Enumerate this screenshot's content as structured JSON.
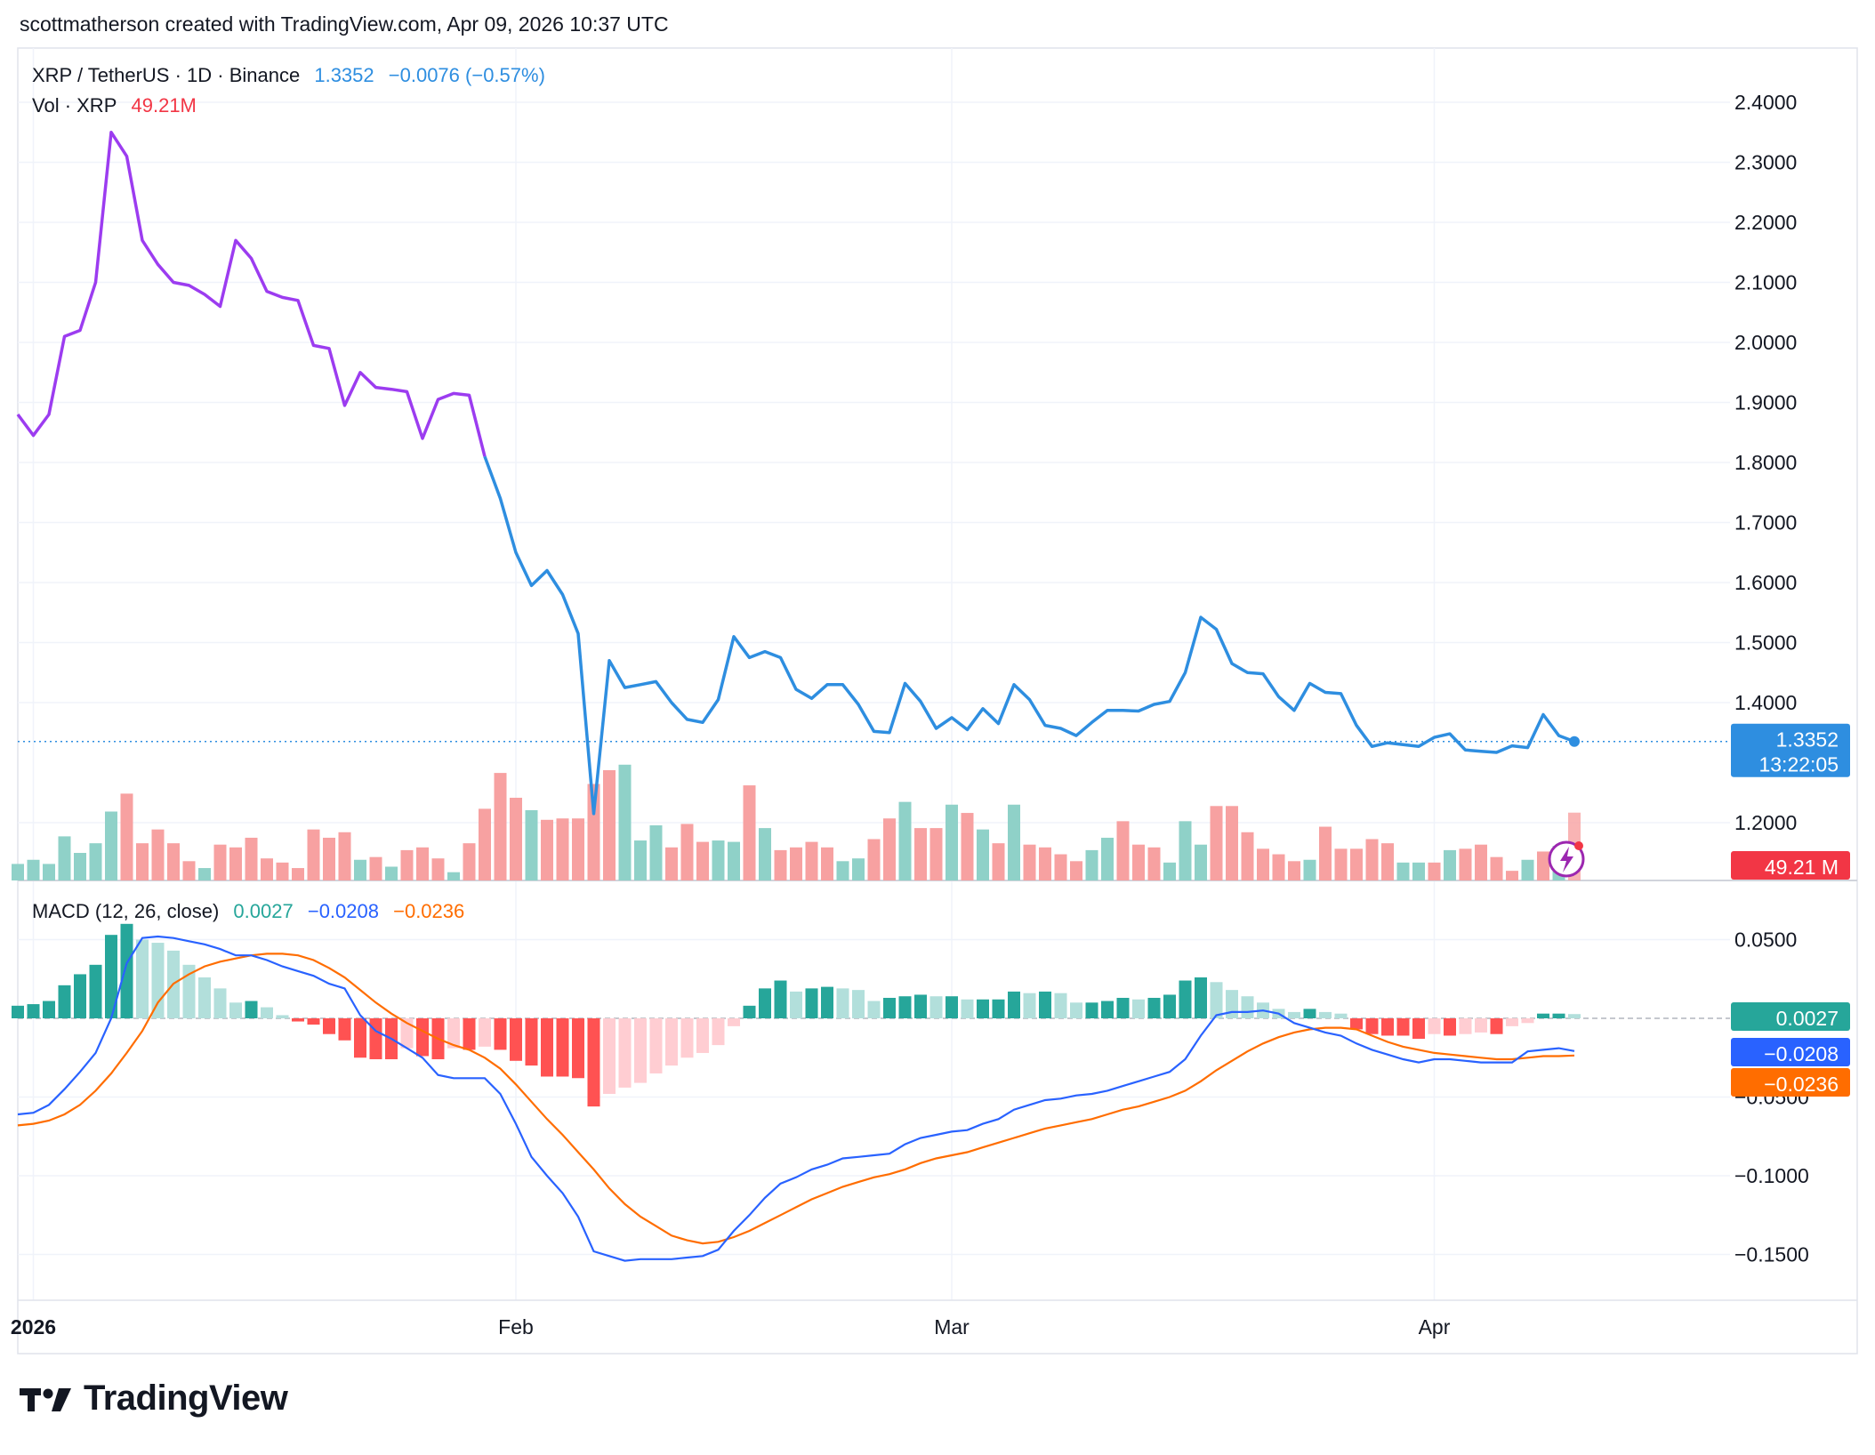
{
  "header": {
    "credit": "scottmatherson created with TradingView.com, Apr 09, 2026 10:37 UTC"
  },
  "legend": {
    "symbol": "XRP / TetherUS · 1D · Binance",
    "price": "1.3352",
    "change": "−0.0076 (−0.57%)",
    "volume_label": "Vol · XRP",
    "volume_value": "49.21M",
    "macd_label": "MACD (12, 26, close)",
    "macd_hist": "0.0027",
    "macd_line": "−0.0208",
    "macd_signal": "−0.0236"
  },
  "badges": {
    "price": "1.3352",
    "countdown": "13:22:05",
    "volume": "49.21 M",
    "macd_hist": "0.0027",
    "macd_line": "−0.0208",
    "macd_signal": "−0.0236"
  },
  "brand": {
    "name": "TradingView"
  },
  "colors": {
    "price_line_early": "#9c3cf0",
    "price_line": "#2e8ee0",
    "vol_up": "#8fd1c8",
    "vol_down": "#f7a1a1",
    "hist_up_strong": "#26a69a",
    "hist_up_weak": "#b2dfdb",
    "hist_down_strong": "#ff5252",
    "hist_down_weak": "#ffcdd2",
    "macd_line": "#2962ff",
    "signal_line": "#ff6d00",
    "volume_badge": "#f23645"
  },
  "chart_data": [
    {
      "type": "line",
      "title": "XRP / TetherUS · 1D · Binance",
      "x_ticks": [
        "2026",
        "Feb",
        "Mar",
        "Apr"
      ],
      "y_ticks": [
        "2.4000",
        "2.3000",
        "2.2000",
        "2.1000",
        "2.0000",
        "1.9000",
        "1.8000",
        "1.7000",
        "1.6000",
        "1.5000",
        "1.4000",
        "1.2000"
      ],
      "ylim": [
        1.1,
        2.45
      ],
      "series": [
        {
          "name": "XRP / TetherUS",
          "values": [
            1.88,
            1.845,
            1.88,
            2.01,
            2.02,
            2.1,
            2.35,
            2.31,
            2.17,
            2.13,
            2.1,
            2.095,
            2.08,
            2.06,
            2.17,
            2.14,
            2.085,
            2.075,
            2.07,
            1.995,
            1.99,
            1.895,
            1.95,
            1.925,
            1.922,
            1.918,
            1.84,
            1.905,
            1.915,
            1.912,
            1.81,
            1.74,
            1.65,
            1.595,
            1.62,
            1.58,
            1.515,
            1.215,
            1.47,
            1.425,
            1.43,
            1.435,
            1.4,
            1.372,
            1.367,
            1.405,
            1.51,
            1.475,
            1.485,
            1.475,
            1.422,
            1.407,
            1.43,
            1.43,
            1.397,
            1.352,
            1.35,
            1.432,
            1.402,
            1.357,
            1.375,
            1.355,
            1.39,
            1.365,
            1.43,
            1.405,
            1.362,
            1.357,
            1.345,
            1.367,
            1.387,
            1.387,
            1.386,
            1.397,
            1.402,
            1.45,
            1.542,
            1.522,
            1.465,
            1.45,
            1.448,
            1.41,
            1.387,
            1.432,
            1.417,
            1.415,
            1.362,
            1.327,
            1.333,
            1.33,
            1.327,
            1.342,
            1.348,
            1.321,
            1.319,
            1.317,
            1.328,
            1.325,
            1.38,
            1.345,
            1.3352
          ]
        }
      ],
      "last_price": 1.3352
    },
    {
      "type": "bar",
      "title": "Vol · XRP",
      "values": [
        12,
        15,
        12,
        32,
        20,
        27,
        50,
        63,
        27,
        37,
        27,
        14,
        9,
        26,
        24,
        31,
        16,
        13,
        9,
        37,
        31,
        35,
        15,
        17,
        10,
        22,
        24,
        16,
        6,
        27,
        52,
        78,
        60,
        51,
        44,
        45,
        45,
        70,
        80,
        84,
        29,
        40,
        24,
        41,
        28,
        29,
        28,
        69,
        38,
        22,
        24,
        28,
        24,
        14,
        16,
        30,
        45,
        57,
        38,
        38,
        55,
        49,
        37,
        27,
        55,
        26,
        24,
        19,
        14,
        22,
        31,
        43,
        26,
        24,
        13,
        43,
        26,
        54,
        54,
        35,
        23,
        19,
        14,
        15,
        39,
        23,
        23,
        30,
        27,
        13,
        13,
        13,
        22,
        23,
        26,
        17,
        7,
        15,
        21,
        25,
        49.21
      ],
      "up": [
        true,
        true,
        true,
        true,
        true,
        true,
        true,
        false,
        false,
        false,
        false,
        false,
        true,
        false,
        false,
        false,
        false,
        false,
        false,
        false,
        false,
        false,
        true,
        false,
        true,
        false,
        false,
        false,
        true,
        false,
        false,
        false,
        false,
        true,
        false,
        false,
        false,
        false,
        false,
        true,
        true,
        true,
        false,
        false,
        false,
        true,
        true,
        false,
        true,
        false,
        false,
        false,
        false,
        true,
        true,
        false,
        false,
        true,
        false,
        false,
        true,
        false,
        true,
        false,
        true,
        false,
        false,
        false,
        false,
        true,
        true,
        false,
        false,
        false,
        true,
        true,
        true,
        false,
        false,
        false,
        false,
        false,
        false,
        true,
        false,
        false,
        false,
        false,
        false,
        true,
        true,
        false,
        true,
        false,
        false,
        false,
        false,
        true,
        false,
        true,
        false
      ]
    },
    {
      "type": "bar",
      "title": "MACD (12, 26, close)",
      "y_ticks": [
        "0.0500",
        "−0.0500",
        "−0.1000",
        "−0.1500"
      ],
      "ylim": [
        -0.17,
        0.065
      ],
      "histogram": [
        0.008,
        0.009,
        0.011,
        0.021,
        0.028,
        0.034,
        0.053,
        0.06,
        0.05,
        0.048,
        0.043,
        0.034,
        0.026,
        0.019,
        0.01,
        0.011,
        0.007,
        0.002,
        -0.002,
        -0.004,
        -0.01,
        -0.014,
        -0.025,
        -0.026,
        -0.026,
        -0.019,
        -0.024,
        -0.026,
        -0.019,
        -0.02,
        -0.018,
        -0.02,
        -0.027,
        -0.03,
        -0.037,
        -0.037,
        -0.038,
        -0.056,
        -0.048,
        -0.044,
        -0.041,
        -0.035,
        -0.03,
        -0.025,
        -0.022,
        -0.017,
        -0.005,
        0.008,
        0.019,
        0.024,
        0.017,
        0.019,
        0.02,
        0.019,
        0.018,
        0.011,
        0.013,
        0.014,
        0.015,
        0.014,
        0.014,
        0.012,
        0.012,
        0.012,
        0.017,
        0.016,
        0.017,
        0.016,
        0.01,
        0.01,
        0.011,
        0.013,
        0.012,
        0.013,
        0.015,
        0.024,
        0.026,
        0.023,
        0.018,
        0.014,
        0.01,
        0.006,
        0.004,
        0.006,
        0.004,
        0.003,
        -0.007,
        -0.01,
        -0.011,
        -0.011,
        -0.013,
        -0.01,
        -0.011,
        -0.01,
        -0.009,
        -0.01,
        -0.005,
        -0.003,
        0.003,
        0.003,
        0.0027
      ],
      "series": [
        {
          "name": "MACD",
          "values": [
            -0.061,
            -0.06,
            -0.055,
            -0.045,
            -0.034,
            -0.022,
            0.0,
            0.035,
            0.051,
            0.052,
            0.051,
            0.049,
            0.047,
            0.044,
            0.04,
            0.04,
            0.037,
            0.033,
            0.03,
            0.027,
            0.022,
            0.019,
            0.002,
            -0.008,
            -0.013,
            -0.019,
            -0.025,
            -0.036,
            -0.038,
            -0.038,
            -0.038,
            -0.048,
            -0.067,
            -0.088,
            -0.1,
            -0.111,
            -0.126,
            -0.148,
            -0.151,
            -0.154,
            -0.153,
            -0.153,
            -0.153,
            -0.152,
            -0.151,
            -0.147,
            -0.135,
            -0.125,
            -0.114,
            -0.105,
            -0.101,
            -0.096,
            -0.093,
            -0.089,
            -0.088,
            -0.087,
            -0.086,
            -0.08,
            -0.076,
            -0.074,
            -0.072,
            -0.071,
            -0.067,
            -0.064,
            -0.058,
            -0.055,
            -0.052,
            -0.051,
            -0.049,
            -0.048,
            -0.046,
            -0.043,
            -0.04,
            -0.037,
            -0.034,
            -0.026,
            -0.011,
            0.002,
            0.004,
            0.004,
            0.005,
            0.003,
            -0.003,
            -0.006,
            -0.009,
            -0.011,
            -0.016,
            -0.02,
            -0.023,
            -0.026,
            -0.028,
            -0.026,
            -0.026,
            -0.027,
            -0.028,
            -0.028,
            -0.028,
            -0.021,
            -0.02,
            -0.019,
            -0.0208
          ]
        },
        {
          "name": "Signal",
          "values": [
            -0.068,
            -0.067,
            -0.065,
            -0.061,
            -0.055,
            -0.046,
            -0.035,
            -0.022,
            -0.008,
            0.01,
            0.022,
            0.028,
            0.033,
            0.036,
            0.038,
            0.04,
            0.041,
            0.041,
            0.04,
            0.037,
            0.032,
            0.026,
            0.018,
            0.01,
            0.003,
            -0.003,
            -0.008,
            -0.013,
            -0.017,
            -0.02,
            -0.025,
            -0.032,
            -0.042,
            -0.053,
            -0.064,
            -0.074,
            -0.085,
            -0.096,
            -0.108,
            -0.118,
            -0.126,
            -0.132,
            -0.138,
            -0.141,
            -0.143,
            -0.142,
            -0.139,
            -0.135,
            -0.13,
            -0.125,
            -0.12,
            -0.115,
            -0.111,
            -0.107,
            -0.104,
            -0.101,
            -0.099,
            -0.096,
            -0.092,
            -0.089,
            -0.087,
            -0.085,
            -0.082,
            -0.079,
            -0.076,
            -0.073,
            -0.07,
            -0.068,
            -0.066,
            -0.064,
            -0.061,
            -0.058,
            -0.056,
            -0.053,
            -0.05,
            -0.046,
            -0.04,
            -0.033,
            -0.027,
            -0.021,
            -0.016,
            -0.012,
            -0.009,
            -0.007,
            -0.006,
            -0.006,
            -0.007,
            -0.011,
            -0.015,
            -0.018,
            -0.02,
            -0.022,
            -0.023,
            -0.024,
            -0.025,
            -0.026,
            -0.026,
            -0.025,
            -0.024,
            -0.024,
            -0.0236
          ]
        }
      ]
    }
  ]
}
